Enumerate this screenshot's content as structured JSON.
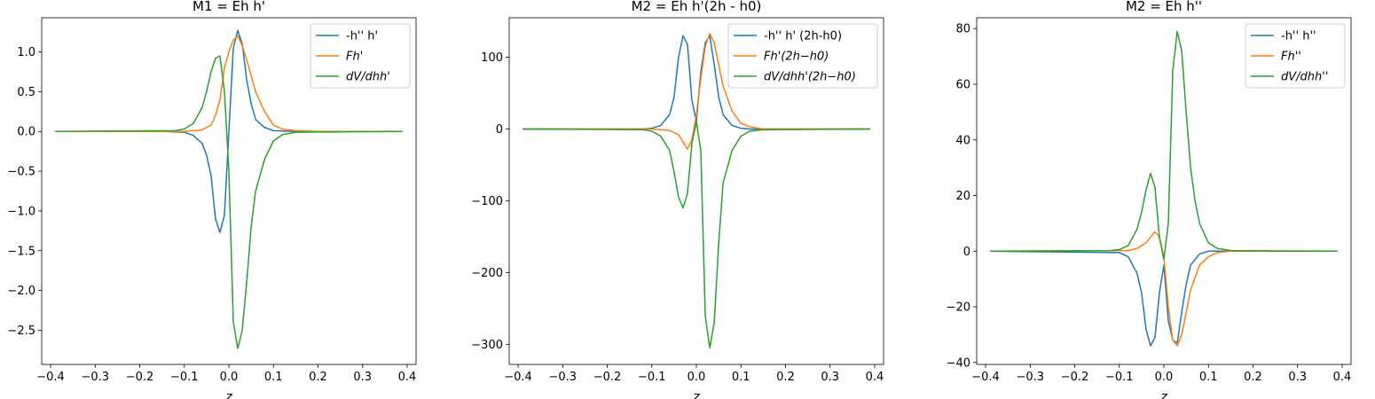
{
  "chart_data": [
    {
      "type": "line",
      "title": "M1 = Eh h'",
      "xlabel": "z",
      "ylabel": "",
      "xlim": [
        -0.42,
        0.42
      ],
      "ylim": [
        -2.93,
        1.43
      ],
      "xticks": [
        -0.4,
        -0.3,
        -0.2,
        -0.1,
        0.0,
        0.1,
        0.2,
        0.3,
        0.4
      ],
      "xtick_labels": [
        "−0.4",
        "−0.3",
        "−0.2",
        "−0.1",
        "0.0",
        "0.1",
        "0.2",
        "0.3",
        "0.4"
      ],
      "yticks": [
        1.0,
        0.5,
        0.0,
        -0.5,
        -1.0,
        -1.5,
        -2.0,
        -2.5
      ],
      "ytick_labels": [
        "1.0",
        "0.5",
        "0.0",
        "−0.5",
        "−1.0",
        "−1.5",
        "−2.0",
        "−2.5"
      ],
      "legend_position": "top-right",
      "grid": false,
      "series": [
        {
          "name": "-h'' h'",
          "color": "#1f77b4",
          "x": [
            -0.39,
            -0.15,
            -0.1,
            -0.08,
            -0.06,
            -0.05,
            -0.04,
            -0.03,
            -0.02,
            -0.01,
            0.0,
            0.01,
            0.02,
            0.03,
            0.04,
            0.05,
            0.06,
            0.08,
            0.1,
            0.15,
            0.39
          ],
          "y": [
            0,
            0,
            -0.01,
            -0.05,
            -0.15,
            -0.3,
            -0.55,
            -1.1,
            -1.27,
            -1.05,
            0.0,
            1.05,
            1.27,
            1.1,
            0.65,
            0.35,
            0.15,
            0.05,
            0.01,
            0,
            0
          ]
        },
        {
          "name": "Fh'",
          "color": "#ff7f0e",
          "x": [
            -0.39,
            -0.1,
            -0.06,
            -0.04,
            -0.03,
            -0.02,
            -0.01,
            0.0,
            0.01,
            0.02,
            0.03,
            0.04,
            0.05,
            0.06,
            0.08,
            0.1,
            0.12,
            0.15,
            0.2,
            0.39
          ],
          "y": [
            0,
            0,
            0.02,
            0.08,
            0.2,
            0.4,
            0.8,
            1.0,
            1.15,
            1.2,
            1.08,
            0.9,
            0.7,
            0.5,
            0.25,
            0.08,
            0.03,
            0.01,
            0,
            0
          ]
        },
        {
          "name": "dV/dhh'",
          "color": "#2ca02c",
          "x": [
            -0.39,
            -0.12,
            -0.1,
            -0.08,
            -0.06,
            -0.05,
            -0.04,
            -0.03,
            -0.02,
            -0.01,
            0.0,
            0.01,
            0.02,
            0.03,
            0.04,
            0.05,
            0.06,
            0.08,
            0.1,
            0.12,
            0.15,
            0.39
          ],
          "y": [
            0,
            0.01,
            0.03,
            0.1,
            0.3,
            0.5,
            0.75,
            0.92,
            0.95,
            0.5,
            -0.5,
            -2.4,
            -2.73,
            -2.5,
            -1.9,
            -1.2,
            -0.75,
            -0.35,
            -0.12,
            -0.04,
            -0.01,
            0
          ]
        }
      ]
    },
    {
      "type": "line",
      "title": "M2 = Eh h'(2h - h0)",
      "xlabel": "z",
      "ylabel": "",
      "xlim": [
        -0.42,
        0.42
      ],
      "ylim": [
        -328,
        155
      ],
      "xticks": [
        -0.4,
        -0.3,
        -0.2,
        -0.1,
        0.0,
        0.1,
        0.2,
        0.3,
        0.4
      ],
      "xtick_labels": [
        "−0.4",
        "−0.3",
        "−0.2",
        "−0.1",
        "0.0",
        "0.1",
        "0.2",
        "0.3",
        "0.4"
      ],
      "yticks": [
        100,
        0,
        -100,
        -200,
        -300
      ],
      "ytick_labels": [
        "100",
        "0",
        "−100",
        "−200",
        "−300"
      ],
      "legend_position": "top-right",
      "grid": false,
      "series": [
        {
          "name": "-h'' h' (2h-h0)",
          "color": "#1f77b4",
          "x": [
            -0.39,
            -0.12,
            -0.1,
            -0.08,
            -0.06,
            -0.05,
            -0.04,
            -0.03,
            -0.02,
            -0.01,
            0.0,
            0.01,
            0.02,
            0.03,
            0.04,
            0.05,
            0.06,
            0.08,
            0.1,
            0.12,
            0.39
          ],
          "y": [
            0,
            0,
            1,
            5,
            20,
            45,
            100,
            130,
            118,
            40,
            10,
            80,
            120,
            130,
            90,
            45,
            20,
            5,
            1,
            0,
            0
          ]
        },
        {
          "name": "Fh'(2h−h0)",
          "color": "#ff7f0e",
          "x": [
            -0.39,
            -0.1,
            -0.06,
            -0.04,
            -0.03,
            -0.02,
            -0.01,
            0.0,
            0.01,
            0.02,
            0.03,
            0.04,
            0.05,
            0.06,
            0.08,
            0.1,
            0.12,
            0.15,
            0.39
          ],
          "y": [
            0,
            0,
            -2,
            -8,
            -18,
            -28,
            -15,
            20,
            70,
            115,
            133,
            120,
            90,
            60,
            25,
            8,
            3,
            0,
            0
          ]
        },
        {
          "name": "dV/dhh'(2h−h0)",
          "color": "#2ca02c",
          "x": [
            -0.39,
            -0.12,
            -0.1,
            -0.08,
            -0.06,
            -0.05,
            -0.04,
            -0.03,
            -0.02,
            -0.01,
            0.0,
            0.01,
            0.02,
            0.03,
            0.04,
            0.05,
            0.06,
            0.08,
            0.1,
            0.12,
            0.15,
            0.39
          ],
          "y": [
            0,
            -1,
            -3,
            -10,
            -30,
            -60,
            -95,
            -110,
            -90,
            -20,
            10,
            -30,
            -260,
            -305,
            -270,
            -160,
            -75,
            -30,
            -10,
            -3,
            -1,
            0
          ]
        }
      ]
    },
    {
      "type": "line",
      "title": "M2 = Eh h''",
      "xlabel": "z",
      "ylabel": "",
      "xlim": [
        -0.42,
        0.42
      ],
      "ylim": [
        -40.7,
        83.9
      ],
      "xticks": [
        -0.4,
        -0.3,
        -0.2,
        -0.1,
        0.0,
        0.1,
        0.2,
        0.3,
        0.4
      ],
      "xtick_labels": [
        "−0.4",
        "−0.3",
        "−0.2",
        "−0.1",
        "0.0",
        "0.1",
        "0.2",
        "0.3",
        "0.4"
      ],
      "yticks": [
        80,
        60,
        40,
        20,
        0,
        -20,
        -40
      ],
      "ytick_labels": [
        "80",
        "60",
        "40",
        "20",
        "0",
        "−20",
        "−40"
      ],
      "legend_position": "top-right",
      "grid": false,
      "series": [
        {
          "name": "-h'' h''",
          "color": "#1f77b4",
          "x": [
            -0.39,
            -0.1,
            -0.08,
            -0.06,
            -0.05,
            -0.04,
            -0.03,
            -0.02,
            -0.01,
            0.0,
            0.01,
            0.02,
            0.03,
            0.04,
            0.05,
            0.06,
            0.08,
            0.1,
            0.12,
            0.39
          ],
          "y": [
            0,
            -0.5,
            -2,
            -8,
            -15,
            -28,
            -34,
            -31,
            -15,
            -5,
            -25,
            -32,
            -33,
            -22,
            -12,
            -5,
            -1,
            0,
            0,
            0
          ]
        },
        {
          "name": "Fh''",
          "color": "#ff7f0e",
          "x": [
            -0.39,
            -0.08,
            -0.06,
            -0.04,
            -0.03,
            -0.02,
            -0.01,
            0.0,
            0.01,
            0.02,
            0.03,
            0.04,
            0.05,
            0.06,
            0.08,
            0.1,
            0.12,
            0.15,
            0.39
          ],
          "y": [
            0,
            0.2,
            1,
            3,
            5,
            7,
            5,
            -2,
            -20,
            -32,
            -34,
            -30,
            -22,
            -14,
            -5,
            -2,
            -0.5,
            0,
            0
          ]
        },
        {
          "name": "dV/dhh''",
          "color": "#2ca02c",
          "x": [
            -0.39,
            -0.12,
            -0.1,
            -0.08,
            -0.06,
            -0.05,
            -0.04,
            -0.03,
            -0.02,
            -0.01,
            0.0,
            0.01,
            0.02,
            0.03,
            0.04,
            0.05,
            0.06,
            0.07,
            0.08,
            0.1,
            0.12,
            0.15,
            0.39
          ],
          "y": [
            0,
            0.2,
            0.6,
            2,
            8,
            14,
            22,
            28,
            23,
            5,
            -3,
            10,
            65,
            79,
            72,
            50,
            30,
            18,
            10,
            3,
            1,
            0.2,
            0
          ]
        }
      ]
    }
  ]
}
